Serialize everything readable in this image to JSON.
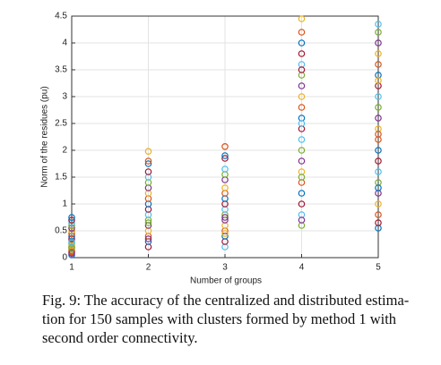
{
  "chart_data": {
    "type": "scatter",
    "xlabel": "Number of groups",
    "ylabel": "Norm of the residues  (pu)",
    "x": [
      1,
      1,
      1,
      1,
      1,
      1,
      1,
      1,
      1,
      1,
      1,
      1,
      1,
      1,
      1,
      1,
      1,
      1,
      1,
      1,
      2,
      2,
      2,
      2,
      2,
      2,
      2,
      2,
      2,
      2,
      2,
      2,
      2,
      2,
      2,
      2,
      2,
      2,
      2,
      2,
      3,
      3,
      3,
      3,
      3,
      3,
      3,
      3,
      3,
      3,
      3,
      3,
      3,
      3,
      3,
      3,
      3,
      3,
      3,
      3,
      4,
      4,
      4,
      4,
      4,
      4,
      4,
      4,
      4,
      4,
      4,
      4,
      4,
      4,
      4,
      4,
      4,
      4,
      4,
      4,
      4,
      4,
      4,
      4,
      5,
      5,
      5,
      5,
      5,
      5,
      5,
      5,
      5,
      5,
      5,
      5,
      5,
      5,
      5,
      5,
      5,
      5,
      5,
      5,
      5,
      5,
      5,
      5
    ],
    "values": [
      0.05,
      0.1,
      0.15,
      0.2,
      0.25,
      0.3,
      0.35,
      0.4,
      0.45,
      0.5,
      0.55,
      0.6,
      0.65,
      0.7,
      0.75,
      0.12,
      0.22,
      0.08,
      0.18,
      0.28,
      0.2,
      0.3,
      0.4,
      0.5,
      0.6,
      0.7,
      0.8,
      0.9,
      1.0,
      1.1,
      1.2,
      1.3,
      1.4,
      1.5,
      1.6,
      1.75,
      1.8,
      1.98,
      0.35,
      0.65,
      0.2,
      0.3,
      0.4,
      0.5,
      0.6,
      0.7,
      0.8,
      0.9,
      1.0,
      1.1,
      1.2,
      1.3,
      1.45,
      1.55,
      1.65,
      1.85,
      1.9,
      2.07,
      0.45,
      0.75,
      0.6,
      0.8,
      1.0,
      1.2,
      1.4,
      1.6,
      1.8,
      2.0,
      2.2,
      2.4,
      2.6,
      2.8,
      3.0,
      3.2,
      3.4,
      3.6,
      3.8,
      4.0,
      4.2,
      4.45,
      0.7,
      1.5,
      2.5,
      3.5,
      0.55,
      0.8,
      1.0,
      1.2,
      1.4,
      1.6,
      1.8,
      2.0,
      2.2,
      2.4,
      2.6,
      2.8,
      3.0,
      3.2,
      3.4,
      3.6,
      3.8,
      4.0,
      4.2,
      4.35,
      0.65,
      1.3,
      2.3,
      3.3
    ],
    "colors": [
      "#0072bd",
      "#d95319",
      "#edb120",
      "#7e2f8e",
      "#77ac30",
      "#4dbeee",
      "#a2142f"
    ],
    "xlim": [
      1,
      5
    ],
    "xticks": [
      1,
      2,
      3,
      4,
      5
    ],
    "ylim": [
      0,
      4.5
    ],
    "yticks": [
      0,
      0.5,
      1,
      1.5,
      2,
      2.5,
      3,
      3.5,
      4,
      4.5
    ],
    "grid": true
  },
  "caption": [
    "Fig. 9: The accuracy of the centralized and distributed estima-",
    "tion for 150 samples with clusters formed by method 1 with",
    "second order connectivity."
  ]
}
